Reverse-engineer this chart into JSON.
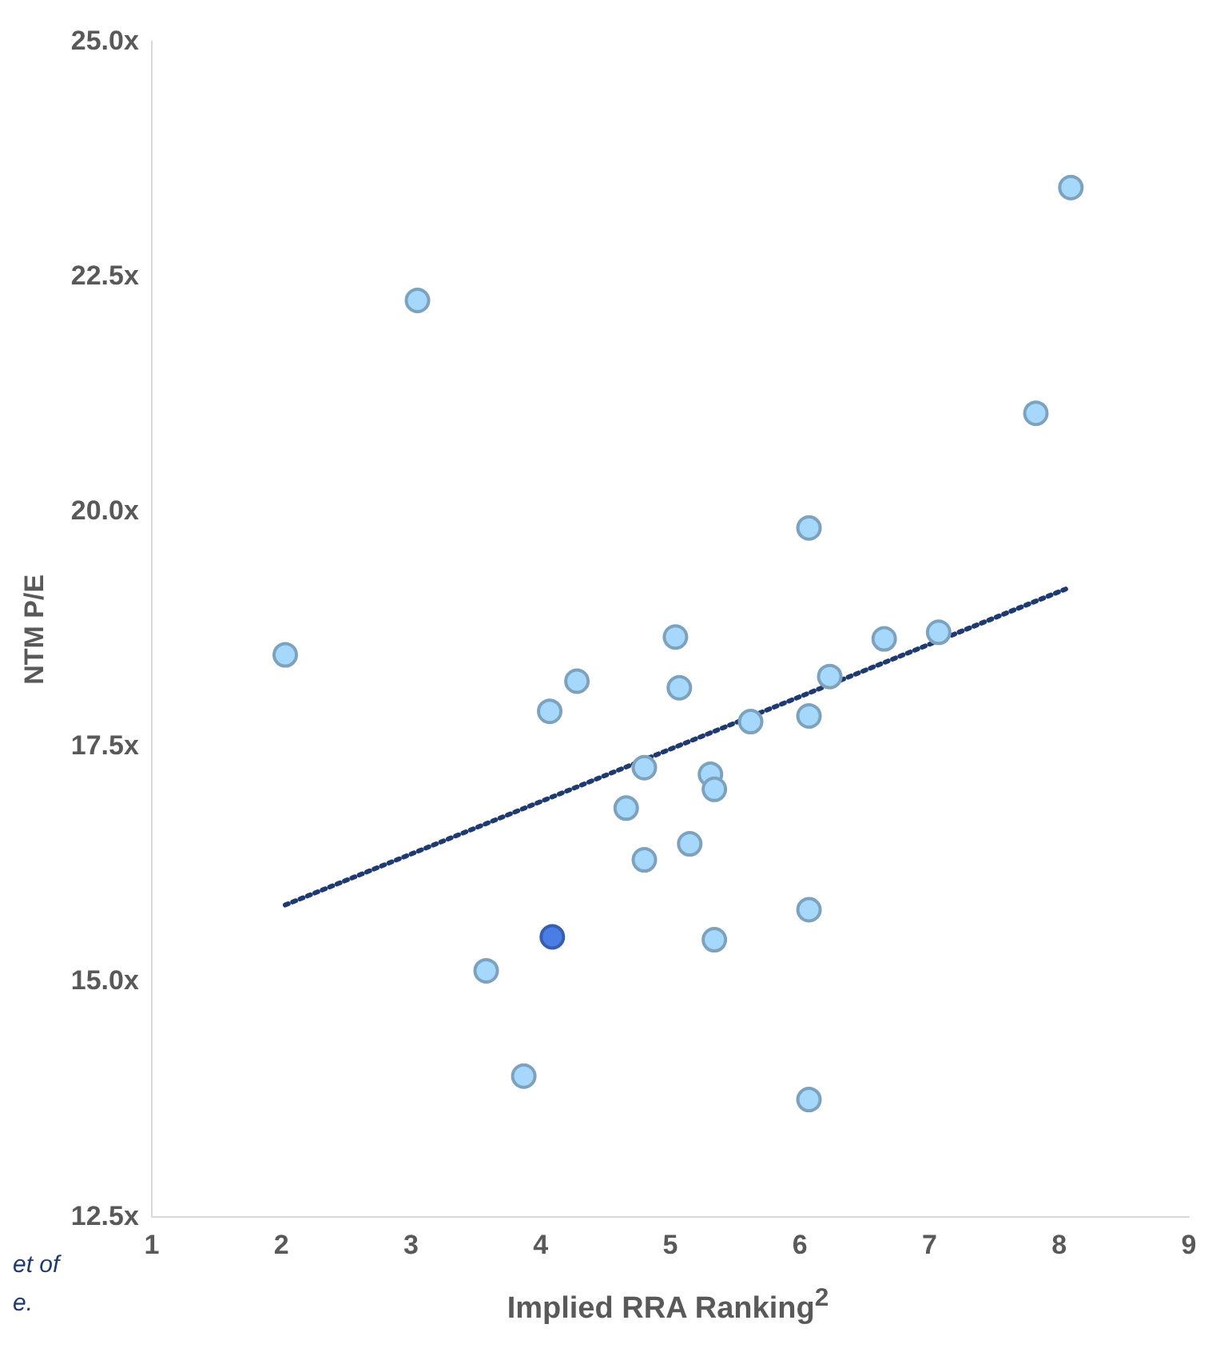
{
  "chart_data": {
    "type": "scatter",
    "xlabel": "Implied RRA Ranking$^{2}$",
    "ylabel": "NTM P/E",
    "xlim": [
      1,
      9
    ],
    "xticks": [
      1,
      2,
      3,
      4,
      5,
      6,
      7,
      8,
      9
    ],
    "ylim": [
      12.5,
      25
    ],
    "yticks": [
      {
        "value": 12.5,
        "label": "12.5x"
      },
      {
        "value": 15,
        "label": "15.0x"
      },
      {
        "value": 17.5,
        "label": "17.5x"
      },
      {
        "value": 20,
        "label": "20.0x"
      },
      {
        "value": 22.5,
        "label": "22.5x"
      },
      {
        "value": 25,
        "label": "25.0x"
      }
    ],
    "grid": false,
    "legend": false,
    "annotations": [
      "et of",
      "e."
    ],
    "series": [
      {
        "marker": "circle",
        "color": "#a6d8fc",
        "x": [
          2.03,
          3.05,
          8.09,
          7.82,
          6.07,
          5.04,
          4.28,
          4.07,
          5.07,
          6.65,
          7.07,
          6.23,
          5.62,
          6.07,
          4.8,
          5.31,
          5.34,
          4.66,
          5.15,
          4.8,
          6.07,
          5.34,
          3.58,
          3.87,
          6.07
        ],
        "values": [
          18.48,
          22.25,
          23.45,
          21.05,
          19.83,
          18.67,
          18.2,
          17.88,
          18.13,
          18.65,
          18.72,
          18.25,
          17.77,
          17.83,
          17.28,
          17.21,
          17.05,
          16.85,
          16.47,
          16.3,
          15.77,
          15.45,
          15.12,
          14.0,
          13.75
        ]
      },
      {
        "marker": "circle",
        "color": "#4a7ee6",
        "x": [
          4.09
        ],
        "values": [
          15.48
        ]
      },
      {
        "type": "line",
        "color": "#1f3a6e",
        "line_style": "dotted",
        "x": [
          2.03,
          8.05
        ],
        "values": [
          15.82,
          19.18
        ]
      }
    ]
  }
}
